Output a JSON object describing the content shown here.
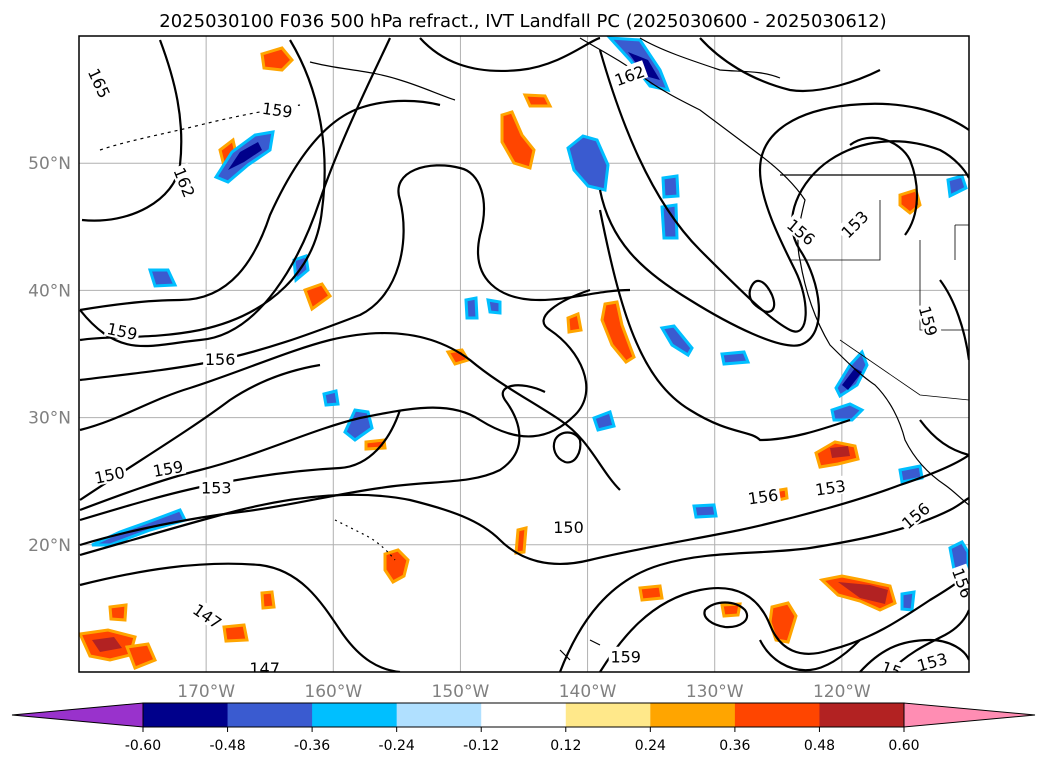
{
  "chart_data": {
    "type": "contour map",
    "title": "2025030100 F036 500 hPa refract., IVT Landfall PC (2025030600 - 2025030612)",
    "xlim": [
      -180,
      -110
    ],
    "ylim": [
      10,
      60
    ],
    "grid": true,
    "x_ticks": [
      {
        "value": -170,
        "label": "170°W"
      },
      {
        "value": -160,
        "label": "160°W"
      },
      {
        "value": -150,
        "label": "150°W"
      },
      {
        "value": -140,
        "label": "140°W"
      },
      {
        "value": -130,
        "label": "130°W"
      },
      {
        "value": -120,
        "label": "120°W"
      }
    ],
    "y_ticks": [
      {
        "value": 20,
        "label": "20°N"
      },
      {
        "value": 30,
        "label": "30°N"
      },
      {
        "value": 40,
        "label": "40°N"
      },
      {
        "value": 50,
        "label": "50°N"
      }
    ],
    "colorbar": {
      "orientation": "horizontal",
      "extend": "both",
      "ticks": [
        "-0.60",
        "-0.48",
        "-0.36",
        "-0.24",
        "-0.12",
        "0.12",
        "0.24",
        "0.36",
        "0.48",
        "0.60"
      ],
      "colors": [
        "#9932cc",
        "#00008b",
        "#3a5bd0",
        "#00bfff",
        "#b0e0ff",
        "#ffffff",
        "#ffe88a",
        "#ffa500",
        "#ff4500",
        "#b22222",
        "#ff8db3"
      ]
    },
    "contour_labels": [
      {
        "text": "165",
        "lon": -178.4,
        "lat": 56.3,
        "rot": 65
      },
      {
        "text": "159",
        "lon": -164.4,
        "lat": 54.2,
        "rot": 8
      },
      {
        "text": "162",
        "lon": -171.7,
        "lat": 48.5,
        "rot": 68
      },
      {
        "text": "162",
        "lon": -136.7,
        "lat": 56.9,
        "rot": -20
      },
      {
        "text": "156",
        "lon": -123.2,
        "lat": 44.6,
        "rot": 40
      },
      {
        "text": "153",
        "lon": -119.0,
        "lat": 45.2,
        "rot": -45
      },
      {
        "text": "159",
        "lon": -176.6,
        "lat": 36.8,
        "rot": 12
      },
      {
        "text": "156",
        "lon": -168.9,
        "lat": 34.6,
        "rot": 0
      },
      {
        "text": "159",
        "lon": -113.2,
        "lat": 37.6,
        "rot": 75
      },
      {
        "text": "150",
        "lon": -177.6,
        "lat": 25.5,
        "rot": -12
      },
      {
        "text": "159",
        "lon": -173.0,
        "lat": 26.0,
        "rot": -10
      },
      {
        "text": "153",
        "lon": -169.2,
        "lat": 24.5,
        "rot": 0
      },
      {
        "text": "150",
        "lon": -141.5,
        "lat": 21.4,
        "rot": 0
      },
      {
        "text": "156",
        "lon": -126.2,
        "lat": 23.8,
        "rot": -8
      },
      {
        "text": "153",
        "lon": -120.9,
        "lat": 24.5,
        "rot": -8
      },
      {
        "text": "156",
        "lon": -114.2,
        "lat": 22.3,
        "rot": -40
      },
      {
        "text": "156",
        "lon": -110.5,
        "lat": 17.0,
        "rot": 70
      },
      {
        "text": "147",
        "lon": -169.9,
        "lat": 14.4,
        "rot": 35
      },
      {
        "text": "147",
        "lon": -165.4,
        "lat": 10.3,
        "rot": 0
      },
      {
        "text": "159",
        "lon": -137.0,
        "lat": 11.2,
        "rot": 0
      },
      {
        "text": "153",
        "lon": -112.9,
        "lat": 10.8,
        "rot": -15
      },
      {
        "text": "15",
        "lon": -116.1,
        "lat": 10.2,
        "rot": 20
      }
    ]
  }
}
